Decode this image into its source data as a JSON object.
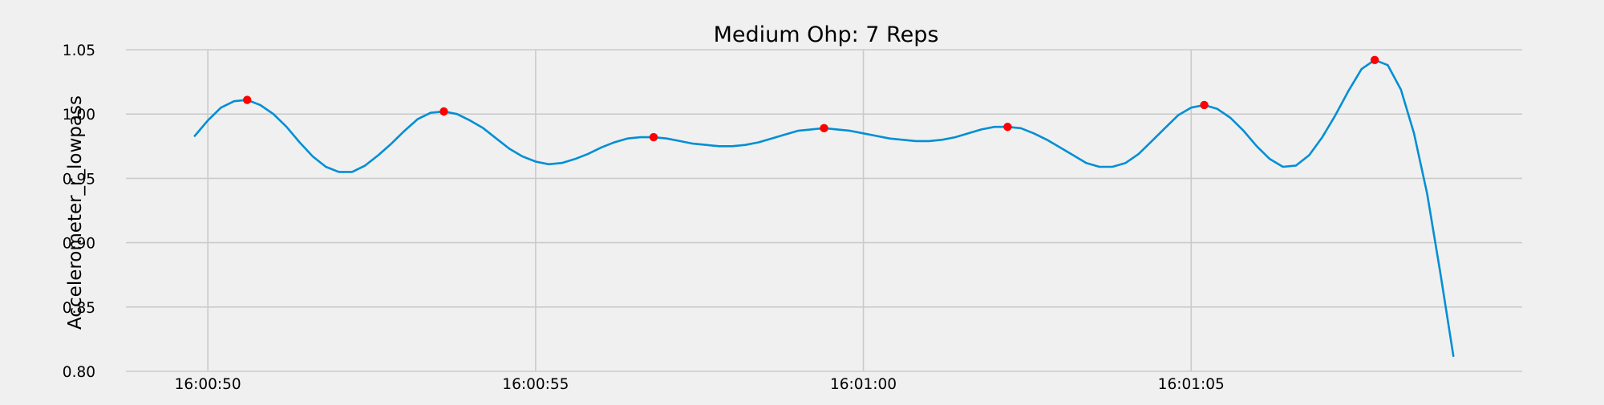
{
  "chart_data": {
    "type": "line",
    "title": "Medium Ohp: 7 Reps",
    "xlabel": "",
    "ylabel": "Accelerometer_r_lowpass",
    "x_unit": "time (HH:MM:SS)",
    "xlim": [
      "16:00:48.75",
      "16:01:10.05"
    ],
    "ylim": [
      0.8,
      1.05
    ],
    "x_ticks": [
      "16:00:50",
      "16:00:55",
      "16:01:00",
      "16:01:05"
    ],
    "y_ticks": [
      "0.80",
      "0.85",
      "0.90",
      "0.95",
      "1.00",
      "1.05"
    ],
    "grid": true,
    "legend": "none",
    "colors": {
      "line": "#008fd5",
      "markers": "#ff0000",
      "background": "#f0f0f0",
      "grid": "#cbcbcb"
    },
    "series": [
      {
        "x": [
          "16:00:49.80",
          "16:00:50.00",
          "16:00:50.20",
          "16:00:50.40",
          "16:00:50.60",
          "16:00:50.80",
          "16:00:51.00",
          "16:00:51.20",
          "16:00:51.40",
          "16:00:51.60",
          "16:00:51.80",
          "16:00:52.00",
          "16:00:52.20",
          "16:00:52.40",
          "16:00:52.60",
          "16:00:52.80",
          "16:00:53.00",
          "16:00:53.20",
          "16:00:53.40",
          "16:00:53.60",
          "16:00:53.80",
          "16:00:54.00",
          "16:00:54.20",
          "16:00:54.40",
          "16:00:54.60",
          "16:00:54.80",
          "16:00:55.00",
          "16:00:55.20",
          "16:00:55.40",
          "16:00:55.60",
          "16:00:55.80",
          "16:00:56.00",
          "16:00:56.20",
          "16:00:56.40",
          "16:00:56.60",
          "16:00:56.80",
          "16:00:57.00",
          "16:00:57.20",
          "16:00:57.40",
          "16:00:57.60",
          "16:00:57.80",
          "16:00:58.00",
          "16:00:58.20",
          "16:00:58.40",
          "16:00:58.60",
          "16:00:58.80",
          "16:00:59.00",
          "16:00:59.20",
          "16:00:59.40",
          "16:00:59.60",
          "16:00:59.80",
          "16:01:00.00",
          "16:01:00.20",
          "16:01:00.40",
          "16:01:00.60",
          "16:01:00.80",
          "16:01:01.00",
          "16:01:01.20",
          "16:01:01.40",
          "16:01:01.60",
          "16:01:01.80",
          "16:01:02.00",
          "16:01:02.20",
          "16:01:02.40",
          "16:01:02.60",
          "16:01:02.80",
          "16:01:03.00",
          "16:01:03.20",
          "16:01:03.40",
          "16:01:03.60",
          "16:01:03.80",
          "16:01:04.00",
          "16:01:04.20",
          "16:01:04.40",
          "16:01:04.60",
          "16:01:04.80",
          "16:01:05.00",
          "16:01:05.20",
          "16:01:05.40",
          "16:01:05.60",
          "16:01:05.80",
          "16:01:06.00",
          "16:01:06.20",
          "16:01:06.40",
          "16:01:06.60",
          "16:01:06.80",
          "16:01:07.00",
          "16:01:07.20",
          "16:01:07.40",
          "16:01:07.60",
          "16:01:07.80",
          "16:01:08.00",
          "16:01:08.20",
          "16:01:08.40",
          "16:01:08.60",
          "16:01:08.80",
          "16:01:09.00"
        ],
        "y": [
          0.983,
          0.995,
          1.005,
          1.01,
          1.011,
          1.007,
          1.0,
          0.99,
          0.978,
          0.967,
          0.959,
          0.955,
          0.955,
          0.96,
          0.968,
          0.977,
          0.987,
          0.996,
          1.001,
          1.002,
          1.0,
          0.995,
          0.989,
          0.981,
          0.973,
          0.967,
          0.963,
          0.961,
          0.962,
          0.965,
          0.969,
          0.974,
          0.978,
          0.981,
          0.982,
          0.982,
          0.981,
          0.979,
          0.977,
          0.976,
          0.975,
          0.975,
          0.976,
          0.978,
          0.981,
          0.984,
          0.987,
          0.988,
          0.989,
          0.988,
          0.987,
          0.985,
          0.983,
          0.981,
          0.98,
          0.979,
          0.979,
          0.98,
          0.982,
          0.985,
          0.988,
          0.99,
          0.99,
          0.989,
          0.985,
          0.98,
          0.974,
          0.968,
          0.962,
          0.959,
          0.959,
          0.962,
          0.969,
          0.979,
          0.989,
          0.999,
          1.005,
          1.007,
          1.004,
          0.997,
          0.987,
          0.975,
          0.965,
          0.959,
          0.96,
          0.968,
          0.982,
          0.999,
          1.018,
          1.035,
          1.042,
          1.038,
          1.019,
          0.985,
          0.938,
          0.877,
          0.812
        ]
      }
    ],
    "peaks": {
      "x": [
        "16:00:50.60",
        "16:00:53.60",
        "16:00:56.80",
        "16:00:59.40",
        "16:01:02.20",
        "16:01:05.20",
        "16:01:07.80"
      ],
      "y": [
        1.011,
        1.002,
        0.982,
        0.989,
        0.99,
        1.007,
        1.042
      ]
    }
  }
}
